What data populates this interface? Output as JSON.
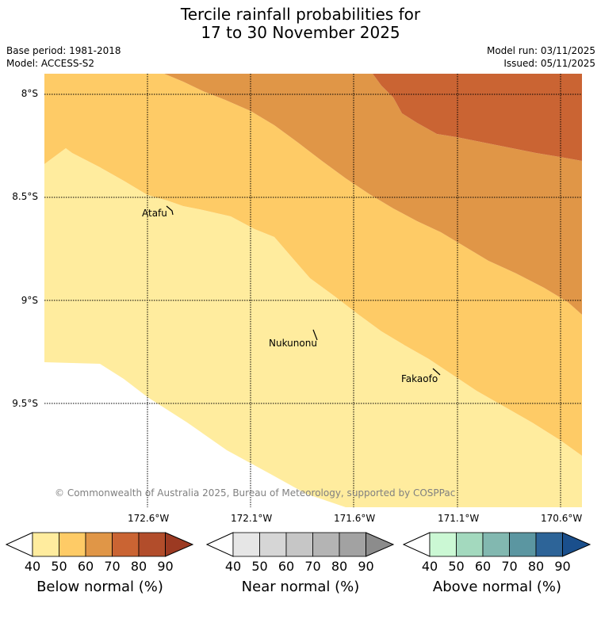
{
  "title": {
    "line1": "Tercile rainfall probabilities for",
    "line2": "17 to 30 November 2025"
  },
  "meta": {
    "base_period": "Base period: 1981-2018",
    "model": "Model: ACCESS-S2",
    "model_run": "Model run: 03/11/2025",
    "issued": "Issued: 05/11/2025"
  },
  "map": {
    "lat_labels": [
      "8°S",
      "8.5°S",
      "9°S",
      "9.5°S"
    ],
    "lon_labels": [
      "172.6°W",
      "172.1°W",
      "171.6°W",
      "171.1°W",
      "170.6°W"
    ],
    "places": [
      "Atafu",
      "Nukunonu",
      "Fakaofo"
    ],
    "attribution": "© Commonwealth of Australia 2025, Bureau of Meteorology, supported by COSPPac",
    "zone_colors": [
      "#FFEC9E",
      "#FECB66",
      "#E09647",
      "#CA6433"
    ]
  },
  "colorbars": [
    {
      "label": "Below normal (%)",
      "ticks": [
        "40",
        "50",
        "60",
        "70",
        "80",
        "90"
      ],
      "colors": [
        "#FFEC9E",
        "#FECB66",
        "#E09647",
        "#CA6433",
        "#B24D2B",
        "#9C3A22"
      ]
    },
    {
      "label": "Near normal (%)",
      "ticks": [
        "40",
        "50",
        "60",
        "70",
        "80",
        "90"
      ],
      "colors": [
        "#E6E6E6",
        "#D6D6D6",
        "#C6C6C6",
        "#B4B4B4",
        "#A2A2A2",
        "#8C8C8C"
      ]
    },
    {
      "label": "Above normal (%)",
      "ticks": [
        "40",
        "50",
        "60",
        "70",
        "80",
        "90"
      ],
      "colors": [
        "#CBF8D4",
        "#A3D9BE",
        "#82B8B0",
        "#5B96A1",
        "#2D6498",
        "#1A4F8C"
      ]
    }
  ]
}
